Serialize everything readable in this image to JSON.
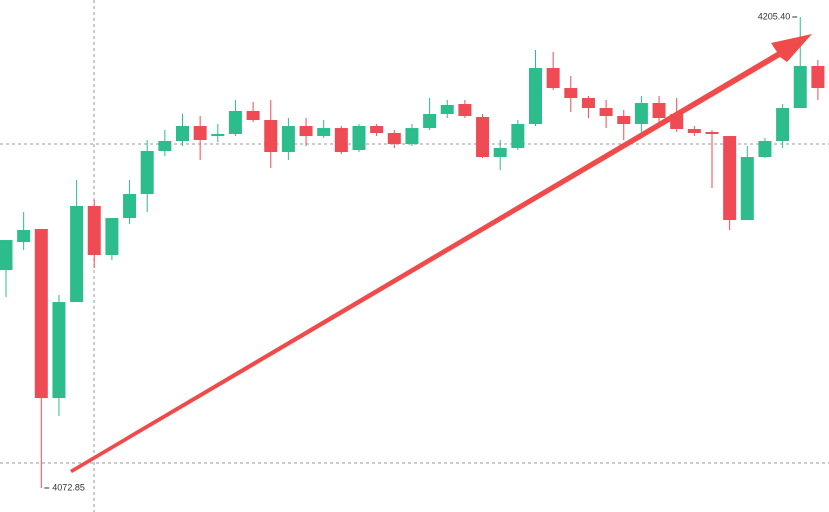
{
  "chart_data": {
    "type": "candlestick",
    "ylim": [
      4066.09,
      4210.18
    ],
    "up_color": "#2dbd8c",
    "down_color": "#ef4b55",
    "max_label": "4205.40",
    "min_label": "4072.85",
    "series": {
      "open": [
        4134.19,
        4142.07,
        4145.73,
        4098.16,
        4125.18,
        4152.2,
        4138.41,
        4148.82,
        4155.58,
        4167.68,
        4170.5,
        4174.72,
        4171.9,
        4172.47,
        4178.94,
        4176.41,
        4167.4,
        4174.72,
        4171.9,
        4174.15,
        4167.96,
        4174.72,
        4172.75,
        4169.65,
        4174.15,
        4178.09,
        4180.91,
        4177.25,
        4165.99,
        4168.53,
        4175.28,
        4191.04,
        4185.41,
        4182.6,
        4179.78,
        4177.53,
        4175.28,
        4181.19,
        4178.09,
        4173.87,
        4173.03,
        4171.9,
        4148.26,
        4165.99,
        4170.5,
        4179.78,
        4191.6
      ],
      "high": [
        4142.63,
        4150.51,
        4145.73,
        4127.15,
        4159.52,
        4153.89,
        4148.82,
        4159.52,
        4170.78,
        4173.59,
        4178.09,
        4177.53,
        4175.28,
        4182.04,
        4181.47,
        4182.04,
        4176.97,
        4176.97,
        4176.41,
        4174.72,
        4175.28,
        4175.28,
        4173.59,
        4175.28,
        4182.6,
        4182.04,
        4182.04,
        4178.09,
        4170.78,
        4176.41,
        4196.11,
        4195.54,
        4188.79,
        4183.16,
        4182.04,
        4179.22,
        4183.16,
        4183.16,
        4182.6,
        4174.72,
        4173.59,
        4171.9,
        4169.09,
        4171.34,
        4180.91,
        4205.4,
        4193.29
      ],
      "low": [
        4126.59,
        4139.82,
        4072.85,
        4093.09,
        4125.18,
        4134.75,
        4137.0,
        4147.13,
        4150.51,
        4166.27,
        4169.09,
        4165.15,
        4170.21,
        4171.9,
        4175.84,
        4162.9,
        4165.15,
        4169.09,
        4171.34,
        4166.84,
        4167.4,
        4171.9,
        4168.53,
        4169.09,
        4173.59,
        4176.97,
        4176.97,
        4165.71,
        4162.33,
        4167.96,
        4174.72,
        4184.85,
        4178.66,
        4176.97,
        4174.15,
        4170.78,
        4173.03,
        4175.28,
        4173.03,
        4171.9,
        4157.27,
        4145.45,
        4148.26,
        4165.71,
        4168.53,
        4179.78,
        4182.04
      ],
      "close": [
        4142.63,
        4145.45,
        4098.16,
        4125.18,
        4152.2,
        4138.41,
        4148.82,
        4155.58,
        4167.68,
        4170.5,
        4174.72,
        4170.78,
        4172.47,
        4178.94,
        4176.41,
        4167.4,
        4174.72,
        4171.9,
        4174.15,
        4167.4,
        4174.72,
        4172.75,
        4169.65,
        4174.15,
        4178.09,
        4180.63,
        4177.53,
        4165.99,
        4168.53,
        4175.28,
        4191.04,
        4185.41,
        4182.6,
        4179.78,
        4177.53,
        4175.28,
        4181.19,
        4176.97,
        4173.87,
        4172.75,
        4172.47,
        4148.26,
        4165.99,
        4170.5,
        4179.78,
        4191.6,
        4185.41
      ]
    }
  }
}
